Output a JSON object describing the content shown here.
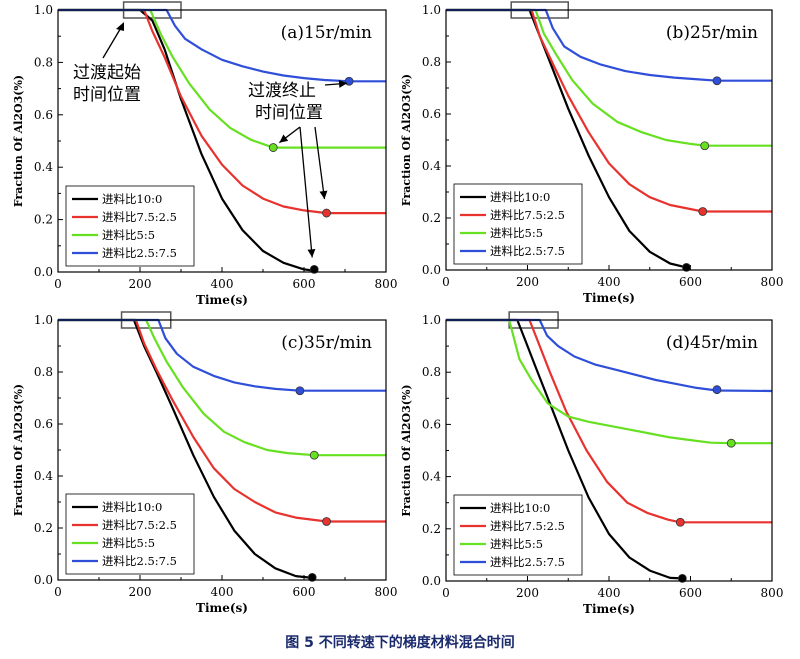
{
  "caption": "图 5 不同转速下的梯度材料混合时间",
  "xlabel": "Time(s)",
  "ylabel": "Fraction Of Al2O3(%)",
  "xticks": [
    "0",
    "200",
    "400",
    "600",
    "800"
  ],
  "yticks": [
    "0.0",
    "0.2",
    "0.4",
    "0.6",
    "0.8",
    "1.0"
  ],
  "annotations": {
    "start_label": [
      "过渡起始",
      "时间位置"
    ],
    "end_label": [
      "过渡终止",
      "时间位置"
    ]
  },
  "series_styles": [
    {
      "name": "进料比10:0",
      "color": "#000000"
    },
    {
      "name": "进料比7.5:2.5",
      "color": "#e8322e"
    },
    {
      "name": "进料比5:5",
      "color": "#66e021"
    },
    {
      "name": "进料比2.5:7.5",
      "color": "#2f4fd9"
    }
  ],
  "chart_data": [
    {
      "type": "line",
      "title": "(a)15r/min",
      "xlabel": "Time(s)",
      "ylabel": "Fraction Of Al2O3(%)",
      "xlim": [
        0,
        800
      ],
      "ylim": [
        0,
        1.0
      ],
      "start_box": [
        160,
        300
      ],
      "series": [
        {
          "name": "进料比10:0",
          "x": [
            0,
            200,
            230,
            260,
            300,
            350,
            400,
            450,
            500,
            550,
            600,
            625
          ],
          "values": [
            1.0,
            1.0,
            0.96,
            0.85,
            0.66,
            0.45,
            0.28,
            0.16,
            0.08,
            0.035,
            0.01,
            0.005
          ],
          "end": [
            625,
            0.01
          ]
        },
        {
          "name": "进料比7.5:2.5",
          "x": [
            0,
            210,
            230,
            260,
            300,
            350,
            400,
            450,
            500,
            550,
            600,
            655,
            800
          ],
          "values": [
            1.0,
            1.0,
            0.92,
            0.82,
            0.67,
            0.52,
            0.41,
            0.33,
            0.28,
            0.25,
            0.235,
            0.225,
            0.225
          ],
          "end": [
            655,
            0.225
          ]
        },
        {
          "name": "进料比5:5",
          "x": [
            0,
            225,
            250,
            280,
            320,
            370,
            420,
            470,
            525,
            800
          ],
          "values": [
            1.0,
            1.0,
            0.91,
            0.82,
            0.72,
            0.62,
            0.55,
            0.505,
            0.475,
            0.475
          ],
          "end": [
            525,
            0.475
          ]
        },
        {
          "name": "进料比2.5:7.5",
          "x": [
            0,
            265,
            285,
            310,
            350,
            400,
            450,
            500,
            550,
            600,
            650,
            710,
            800
          ],
          "values": [
            1.0,
            1.0,
            0.94,
            0.89,
            0.85,
            0.81,
            0.785,
            0.765,
            0.75,
            0.74,
            0.733,
            0.728,
            0.728
          ],
          "end": [
            710,
            0.728
          ]
        }
      ]
    },
    {
      "type": "line",
      "title": "(b)25r/min",
      "xlabel": "Time(s)",
      "ylabel": "Fraction Of Al2O3(%)",
      "xlim": [
        0,
        800
      ],
      "ylim": [
        0,
        1.0
      ],
      "start_box": [
        160,
        300
      ],
      "series": [
        {
          "name": "进料比10:0",
          "x": [
            0,
            205,
            230,
            260,
            300,
            350,
            400,
            450,
            500,
            550,
            590
          ],
          "values": [
            1.0,
            1.0,
            0.9,
            0.78,
            0.62,
            0.44,
            0.28,
            0.15,
            0.07,
            0.025,
            0.01
          ],
          "end": [
            590,
            0.01
          ]
        },
        {
          "name": "进料比7.5:2.5",
          "x": [
            0,
            210,
            230,
            260,
            300,
            350,
            400,
            450,
            500,
            550,
            630,
            800
          ],
          "values": [
            1.0,
            1.0,
            0.9,
            0.8,
            0.67,
            0.53,
            0.41,
            0.33,
            0.28,
            0.25,
            0.225,
            0.225
          ],
          "end": [
            630,
            0.225
          ]
        },
        {
          "name": "进料比5:5",
          "x": [
            0,
            220,
            240,
            270,
            310,
            360,
            420,
            480,
            540,
            600,
            635,
            800
          ],
          "values": [
            1.0,
            1.0,
            0.91,
            0.83,
            0.73,
            0.64,
            0.57,
            0.53,
            0.5,
            0.485,
            0.478,
            0.478
          ],
          "end": [
            635,
            0.478
          ]
        },
        {
          "name": "进料比2.5:7.5",
          "x": [
            0,
            245,
            262,
            290,
            330,
            380,
            440,
            500,
            560,
            620,
            665,
            800
          ],
          "values": [
            1.0,
            1.0,
            0.93,
            0.86,
            0.82,
            0.79,
            0.765,
            0.75,
            0.74,
            0.733,
            0.728,
            0.728
          ],
          "end": [
            665,
            0.728
          ]
        }
      ]
    },
    {
      "type": "line",
      "title": "(c)35r/min",
      "xlabel": "Time(s)",
      "ylabel": "Fraction Of Al2O3(%)",
      "xlim": [
        0,
        800
      ],
      "ylim": [
        0,
        1.0
      ],
      "start_box": [
        155,
        275
      ],
      "series": [
        {
          "name": "进料比10:0",
          "x": [
            0,
            185,
            210,
            240,
            280,
            330,
            380,
            430,
            480,
            530,
            580,
            620
          ],
          "values": [
            1.0,
            1.0,
            0.9,
            0.8,
            0.66,
            0.48,
            0.32,
            0.19,
            0.1,
            0.045,
            0.015,
            0.008
          ],
          "end": [
            620,
            0.01
          ]
        },
        {
          "name": "进料比7.5:2.5",
          "x": [
            0,
            190,
            210,
            240,
            280,
            330,
            380,
            430,
            480,
            530,
            580,
            655,
            800
          ],
          "values": [
            1.0,
            1.0,
            0.91,
            0.81,
            0.69,
            0.55,
            0.43,
            0.35,
            0.3,
            0.26,
            0.24,
            0.225,
            0.225
          ],
          "end": [
            655,
            0.225
          ]
        },
        {
          "name": "进料比5:5",
          "x": [
            0,
            215,
            235,
            265,
            305,
            355,
            405,
            455,
            510,
            560,
            625,
            800
          ],
          "values": [
            1.0,
            1.0,
            0.93,
            0.84,
            0.74,
            0.64,
            0.57,
            0.53,
            0.5,
            0.488,
            0.48,
            0.48
          ],
          "end": [
            625,
            0.48
          ]
        },
        {
          "name": "进料比2.5:7.5",
          "x": [
            0,
            245,
            262,
            290,
            330,
            380,
            430,
            480,
            530,
            590,
            800
          ],
          "values": [
            1.0,
            1.0,
            0.93,
            0.87,
            0.82,
            0.785,
            0.76,
            0.745,
            0.735,
            0.728,
            0.728
          ],
          "end": [
            590,
            0.728
          ]
        }
      ]
    },
    {
      "type": "line",
      "title": "(d)45r/min",
      "xlabel": "Time(s)",
      "ylabel": "Fraction Of Al2O3(%)",
      "xlim": [
        0,
        800
      ],
      "ylim": [
        0,
        1.0
      ],
      "start_box": [
        155,
        275
      ],
      "series": [
        {
          "name": "进料比10:0",
          "x": [
            0,
            175,
            195,
            220,
            260,
            300,
            350,
            400,
            450,
            500,
            550,
            580
          ],
          "values": [
            1.0,
            1.0,
            0.92,
            0.82,
            0.66,
            0.5,
            0.32,
            0.18,
            0.09,
            0.04,
            0.012,
            0.01
          ],
          "end": [
            580,
            0.01
          ]
        },
        {
          "name": "进料比7.5:2.5",
          "x": [
            0,
            205,
            225,
            255,
            295,
            345,
            395,
            445,
            495,
            545,
            575,
            800
          ],
          "values": [
            1.0,
            1.0,
            0.92,
            0.8,
            0.65,
            0.5,
            0.38,
            0.3,
            0.26,
            0.235,
            0.225,
            0.225
          ],
          "end": [
            575,
            0.225
          ]
        },
        {
          "name": "进料比5:5",
          "x": [
            0,
            155,
            180,
            210,
            250,
            300,
            350,
            400,
            450,
            500,
            550,
            600,
            650,
            700,
            800
          ],
          "values": [
            1.0,
            1.0,
            0.85,
            0.77,
            0.68,
            0.63,
            0.61,
            0.595,
            0.58,
            0.565,
            0.55,
            0.54,
            0.53,
            0.528,
            0.528
          ],
          "end": [
            700,
            0.528
          ]
        },
        {
          "name": "进料比2.5:7.5",
          "x": [
            0,
            230,
            248,
            275,
            315,
            365,
            415,
            465,
            515,
            565,
            615,
            665,
            800
          ],
          "values": [
            1.0,
            1.0,
            0.94,
            0.9,
            0.86,
            0.83,
            0.81,
            0.79,
            0.77,
            0.755,
            0.74,
            0.73,
            0.728
          ],
          "end": [
            665,
            0.733
          ]
        }
      ]
    }
  ]
}
